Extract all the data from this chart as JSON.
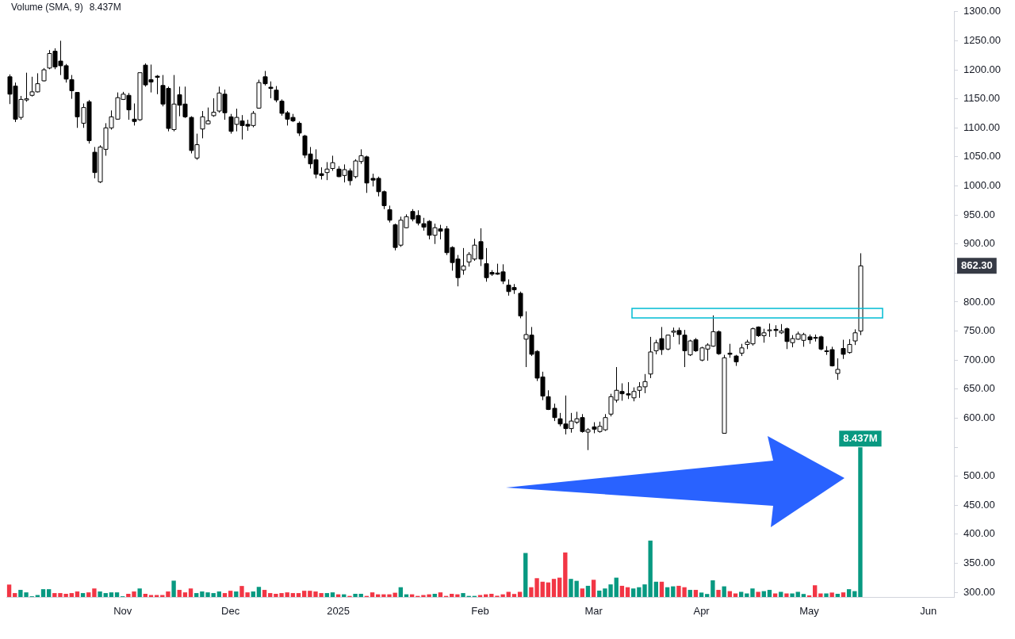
{
  "chart_data": {
    "type": "candlestick",
    "categories": [
      null,
      null,
      null,
      null,
      null,
      null,
      null,
      null,
      null,
      null,
      null,
      null,
      null,
      null,
      null,
      null,
      null,
      null,
      null,
      null,
      "Nov",
      null,
      null,
      null,
      null,
      null,
      null,
      null,
      null,
      null,
      null,
      null,
      null,
      null,
      null,
      null,
      null,
      null,
      null,
      "Dec",
      null,
      null,
      null,
      null,
      null,
      null,
      null,
      null,
      null,
      null,
      null,
      null,
      null,
      null,
      null,
      null,
      null,
      null,
      "2025",
      null,
      null,
      null,
      null,
      null,
      null,
      null,
      null,
      null,
      null,
      null,
      null,
      null,
      null,
      null,
      null,
      null,
      null,
      null,
      null,
      null,
      null,
      null,
      null,
      "Feb",
      null,
      null,
      null,
      null,
      null,
      null,
      null,
      null,
      null,
      null,
      null,
      null,
      null,
      null,
      null,
      null,
      null,
      null,
      null,
      "Mar",
      null,
      null,
      null,
      null,
      null,
      null,
      null,
      null,
      null,
      null,
      null,
      null,
      null,
      null,
      null,
      null,
      null,
      null,
      "Apr",
      null,
      null,
      null,
      null,
      null,
      null,
      null,
      null,
      null,
      null,
      null,
      null,
      null,
      null,
      null,
      null,
      null,
      null,
      "May",
      null,
      null,
      null,
      null,
      null,
      null,
      null,
      null,
      null,
      null,
      null,
      null,
      null,
      null,
      null,
      null,
      null,
      null,
      null,
      null,
      "Jun",
      null,
      null,
      null,
      null
    ],
    "ohlc": [
      [
        1188,
        1192,
        1141,
        1158
      ],
      [
        1172,
        1178,
        1110,
        1115
      ],
      [
        1118,
        1155,
        1114,
        1149
      ],
      [
        1148,
        1195,
        1145,
        1150
      ],
      [
        1156,
        1188,
        1154,
        1162
      ],
      [
        1162,
        1194,
        1161,
        1176
      ],
      [
        1181,
        1203,
        1180,
        1200
      ],
      [
        1203,
        1234,
        1201,
        1228
      ],
      [
        1232,
        1237,
        1201,
        1205
      ],
      [
        1215,
        1250,
        1191,
        1207
      ],
      [
        1207,
        1210,
        1178,
        1184
      ],
      [
        1183,
        1191,
        1150,
        1164
      ],
      [
        1161,
        1161,
        1100,
        1119
      ],
      [
        1108,
        1142,
        1100,
        1135
      ],
      [
        1145,
        1148,
        1073,
        1078
      ],
      [
        1058,
        1067,
        1013,
        1023
      ],
      [
        1007,
        1070,
        1005,
        1067
      ],
      [
        1063,
        1108,
        1052,
        1100
      ],
      [
        1100,
        1130,
        1097,
        1119
      ],
      [
        1115,
        1161,
        1114,
        1152
      ],
      [
        1149,
        1162,
        1148,
        1158
      ],
      [
        1156,
        1160,
        1114,
        1131
      ],
      [
        1115,
        1142,
        1104,
        1111
      ],
      [
        1114,
        1195,
        1112,
        1195
      ],
      [
        1208,
        1211,
        1171,
        1174
      ],
      [
        1183,
        1209,
        1161,
        1179
      ],
      [
        1189,
        1191,
        1158,
        1187
      ],
      [
        1173,
        1191,
        1137,
        1141
      ],
      [
        1168,
        1171,
        1094,
        1099
      ],
      [
        1097,
        1191,
        1094,
        1141
      ],
      [
        1157,
        1171,
        1120,
        1139
      ],
      [
        1141,
        1171,
        1117,
        1119
      ],
      [
        1118,
        1120,
        1056,
        1061
      ],
      [
        1048,
        1090,
        1045,
        1071
      ],
      [
        1098,
        1129,
        1082,
        1119
      ],
      [
        1107,
        1135,
        1106,
        1112
      ],
      [
        1121,
        1151,
        1119,
        1127
      ],
      [
        1129,
        1171,
        1126,
        1160
      ],
      [
        1158,
        1166,
        1114,
        1126
      ],
      [
        1119,
        1124,
        1090,
        1094
      ],
      [
        1106,
        1133,
        1094,
        1118
      ],
      [
        1112,
        1122,
        1080,
        1104
      ],
      [
        1106,
        1114,
        1095,
        1103
      ],
      [
        1104,
        1129,
        1101,
        1125
      ],
      [
        1134,
        1183,
        1133,
        1178
      ],
      [
        1188,
        1198,
        1173,
        1176
      ],
      [
        1170,
        1180,
        1151,
        1168
      ],
      [
        1165,
        1172,
        1144,
        1148
      ],
      [
        1146,
        1149,
        1121,
        1125
      ],
      [
        1126,
        1129,
        1104,
        1115
      ],
      [
        1118,
        1124,
        1110,
        1112
      ],
      [
        1108,
        1111,
        1086,
        1091
      ],
      [
        1086,
        1088,
        1048,
        1053
      ],
      [
        1055,
        1067,
        1030,
        1038
      ],
      [
        1045,
        1063,
        1013,
        1020
      ],
      [
        1021,
        1032,
        1011,
        1018
      ],
      [
        1023,
        1041,
        1010,
        1029
      ],
      [
        1030,
        1052,
        1026,
        1040
      ],
      [
        1029,
        1034,
        1015,
        1016
      ],
      [
        1018,
        1037,
        1006,
        1028
      ],
      [
        1026,
        1030,
        1001,
        1009
      ],
      [
        1016,
        1046,
        1013,
        1043
      ],
      [
        1042,
        1063,
        1038,
        1052
      ],
      [
        1050,
        1052,
        988,
        1005
      ],
      [
        1013,
        1021,
        999,
        1010
      ],
      [
        1013,
        1016,
        982,
        990
      ],
      [
        990,
        992,
        960,
        966
      ],
      [
        959,
        966,
        937,
        941
      ],
      [
        933,
        935,
        889,
        894
      ],
      [
        898,
        947,
        895,
        941
      ],
      [
        928,
        951,
        927,
        947
      ],
      [
        956,
        960,
        939,
        943
      ],
      [
        949,
        958,
        932,
        936
      ],
      [
        935,
        945,
        923,
        929
      ],
      [
        939,
        941,
        908,
        915
      ],
      [
        915,
        935,
        900,
        928
      ],
      [
        926,
        933,
        908,
        922
      ],
      [
        926,
        931,
        881,
        885
      ],
      [
        894,
        896,
        854,
        868
      ],
      [
        874,
        881,
        827,
        842
      ],
      [
        855,
        893,
        847,
        862
      ],
      [
        869,
        886,
        861,
        882
      ],
      [
        874,
        909,
        871,
        898
      ],
      [
        904,
        927,
        862,
        874
      ],
      [
        866,
        893,
        835,
        842
      ],
      [
        851,
        855,
        845,
        848
      ],
      [
        850,
        866,
        847,
        848
      ],
      [
        852,
        865,
        831,
        836
      ],
      [
        829,
        839,
        811,
        818
      ],
      [
        825,
        831,
        814,
        821
      ],
      [
        815,
        818,
        772,
        776
      ],
      [
        736,
        784,
        688,
        744
      ],
      [
        743,
        757,
        707,
        710
      ],
      [
        715,
        717,
        664,
        669
      ],
      [
        671,
        680,
        631,
        638
      ],
      [
        637,
        648,
        614,
        615
      ],
      [
        617,
        625,
        595,
        601
      ],
      [
        599,
        609,
        586,
        590
      ],
      [
        590,
        639,
        572,
        582
      ],
      [
        582,
        609,
        575,
        595
      ],
      [
        593,
        611,
        590,
        599
      ],
      [
        601,
        607,
        575,
        577
      ],
      [
        576,
        583,
        545,
        580
      ],
      [
        585,
        593,
        574,
        581
      ],
      [
        577,
        594,
        575,
        586
      ],
      [
        580,
        607,
        578,
        601
      ],
      [
        607,
        642,
        603,
        637
      ],
      [
        631,
        688,
        627,
        648
      ],
      [
        646,
        660,
        630,
        642
      ],
      [
        642,
        662,
        633,
        640
      ],
      [
        635,
        653,
        629,
        646
      ],
      [
        648,
        662,
        635,
        654
      ],
      [
        654,
        676,
        643,
        663
      ],
      [
        676,
        740,
        669,
        714
      ],
      [
        716,
        735,
        710,
        730
      ],
      [
        737,
        757,
        709,
        718
      ],
      [
        719,
        744,
        717,
        743
      ],
      [
        748,
        756,
        740,
        750
      ],
      [
        751,
        756,
        727,
        744
      ],
      [
        743,
        752,
        688,
        716
      ],
      [
        709,
        735,
        707,
        733
      ],
      [
        735,
        738,
        714,
        716
      ],
      [
        700,
        723,
        698,
        721
      ],
      [
        719,
        729,
        699,
        726
      ],
      [
        724,
        777,
        723,
        749
      ],
      [
        749,
        751,
        709,
        711
      ],
      [
        574,
        709,
        574,
        704
      ],
      [
        712,
        728,
        704,
        710
      ],
      [
        707,
        709,
        690,
        697
      ],
      [
        712,
        728,
        707,
        721
      ],
      [
        727,
        735,
        719,
        731
      ],
      [
        728,
        756,
        725,
        754
      ],
      [
        757,
        758,
        740,
        742
      ],
      [
        742,
        754,
        730,
        747
      ],
      [
        752,
        763,
        740,
        752
      ],
      [
        753,
        760,
        740,
        751
      ],
      [
        747,
        762,
        745,
        750
      ],
      [
        754,
        756,
        719,
        732
      ],
      [
        730,
        743,
        722,
        737
      ],
      [
        736,
        749,
        735,
        745
      ],
      [
        734,
        747,
        723,
        744
      ],
      [
        740,
        744,
        728,
        735
      ],
      [
        739,
        744,
        732,
        738
      ],
      [
        740,
        742,
        717,
        719
      ],
      [
        716,
        724,
        709,
        716
      ],
      [
        718,
        723,
        689,
        690
      ],
      [
        677,
        703,
        666,
        684
      ],
      [
        720,
        735,
        702,
        710
      ],
      [
        713,
        736,
        711,
        727
      ],
      [
        733,
        753,
        726,
        747
      ],
      [
        750,
        884,
        743,
        862.3
      ],
      null,
      null,
      null,
      null,
      null,
      null,
      null,
      null,
      null,
      null,
      null,
      null,
      null,
      null,
      null,
      null
    ],
    "series": [
      {
        "type": "bar",
        "axis": "y2",
        "values": [
          0.7,
          0.22,
          0.4,
          0.26,
          0.04,
          0.11,
          0.44,
          0.44,
          0.22,
          0.22,
          0.18,
          0.22,
          0.31,
          0.22,
          0.26,
          0.48,
          0.31,
          0.22,
          0.26,
          0.26,
          0.04,
          0.18,
          0.31,
          0.48,
          0.18,
          0.11,
          0.11,
          0.11,
          0.31,
          0.92,
          0.4,
          0.26,
          0.48,
          0.22,
          0.31,
          0.26,
          0.22,
          0.31,
          0.22,
          0.35,
          0.31,
          0.62,
          0.26,
          0.31,
          0.57,
          0.4,
          0.22,
          0.18,
          0.22,
          0.26,
          0.22,
          0.22,
          0.35,
          0.35,
          0.31,
          0.22,
          0.22,
          0.26,
          0.15,
          0.15,
          0.06,
          0.18,
          0.18,
          0.06,
          0.26,
          0.15,
          0.15,
          0.15,
          0.24,
          0.55,
          0.15,
          0.15,
          0.06,
          0.11,
          0.15,
          0.18,
          0.26,
          0.06,
          0.18,
          0.15,
          0.22,
          0.06,
          0.06,
          0.11,
          0.15,
          0.18,
          0.07,
          0.15,
          0.29,
          0.17,
          0.29,
          2.48,
          0.55,
          1.06,
          0.86,
          0.82,
          1.02,
          1.09,
          2.51,
          1.02,
          0.91,
          0.48,
          0.63,
          0.97,
          0.36,
          0.48,
          0.71,
          1.09,
          0.63,
          0.55,
          0.48,
          0.55,
          0.71,
          3.18,
          0.86,
          0.86,
          0.55,
          0.6,
          0.63,
          0.55,
          0.4,
          0.4,
          0.25,
          0.17,
          0.94,
          0.4,
          0.6,
          0.33,
          0.2,
          0.29,
          0.2,
          0.48,
          0.29,
          0.33,
          0.4,
          0.2,
          0.29,
          0.2,
          0.2,
          0.29,
          0.17,
          0.09,
          0.66,
          0.2,
          0.2,
          0.25,
          0.18,
          0.26,
          0.44,
          0.33,
          8.437,
          null,
          null,
          null,
          null,
          null,
          null,
          null,
          null,
          null,
          null,
          null,
          null,
          null,
          null,
          null,
          null
        ],
        "colors": [
          "#f23645",
          "#f23645",
          "#089981",
          "#089981",
          "#089981",
          "#089981",
          "#089981",
          "#089981",
          "#f23645",
          "#f23645",
          "#f23645",
          "#f23645",
          "#f23645",
          "#089981",
          "#f23645",
          "#f23645",
          "#089981",
          "#089981",
          "#089981",
          "#089981",
          "#089981",
          "#f23645",
          "#f23645",
          "#089981",
          "#f23645",
          "#f23645",
          "#f23645",
          "#f23645",
          "#f23645",
          "#089981",
          "#f23645",
          "#f23645",
          "#f23645",
          "#089981",
          "#089981",
          "#089981",
          "#089981",
          "#089981",
          "#f23645",
          "#f23645",
          "#089981",
          "#f23645",
          "#f23645",
          "#089981",
          "#089981",
          "#f23645",
          "#f23645",
          "#f23645",
          "#f23645",
          "#f23645",
          "#f23645",
          "#f23645",
          "#f23645",
          "#f23645",
          "#f23645",
          "#f23645",
          "#089981",
          "#089981",
          "#f23645",
          "#089981",
          "#f23645",
          "#089981",
          "#089981",
          "#f23645",
          "#f23645",
          "#f23645",
          "#f23645",
          "#f23645",
          "#f23645",
          "#089981",
          "#089981",
          "#f23645",
          "#f23645",
          "#f23645",
          "#f23645",
          "#089981",
          "#f23645",
          "#f23645",
          "#f23645",
          "#f23645",
          "#089981",
          "#089981",
          "#089981",
          "#f23645",
          "#f23645",
          "#f23645",
          "#f23645",
          "#f23645",
          "#f23645",
          "#f23645",
          "#f23645",
          "#089981",
          "#f23645",
          "#f23645",
          "#f23645",
          "#f23645",
          "#f23645",
          "#f23645",
          "#f23645",
          "#089981",
          "#089981",
          "#f23645",
          "#089981",
          "#f23645",
          "#089981",
          "#089981",
          "#089981",
          "#089981",
          "#f23645",
          "#f23645",
          "#089981",
          "#089981",
          "#089981",
          "#089981",
          "#089981",
          "#f23645",
          "#089981",
          "#089981",
          "#f23645",
          "#f23645",
          "#089981",
          "#f23645",
          "#089981",
          "#089981",
          "#089981",
          "#f23645",
          "#089981",
          "#f23645",
          "#f23645",
          "#089981",
          "#089981",
          "#089981",
          "#f23645",
          "#089981",
          "#089981",
          "#f23645",
          "#089981",
          "#f23645",
          "#089981",
          "#089981",
          "#089981",
          "#f23645",
          "#f23645",
          "#f23645",
          "#089981",
          "#f23645",
          "#089981",
          "#f23645",
          "#089981",
          "#089981",
          "#089981",
          null,
          null,
          null,
          null,
          null,
          null,
          null,
          null,
          null,
          null,
          null,
          null,
          null,
          null,
          null,
          null
        ],
        "value_labels": [
          null,
          null,
          null,
          null,
          null,
          null,
          null,
          null,
          null,
          null,
          null,
          null,
          null,
          null,
          null,
          null,
          null,
          null,
          null,
          null,
          null,
          null,
          null,
          null,
          null,
          null,
          null,
          null,
          null,
          null,
          null,
          null,
          null,
          null,
          null,
          null,
          null,
          null,
          null,
          null,
          null,
          null,
          null,
          null,
          null,
          null,
          null,
          null,
          null,
          null,
          null,
          null,
          null,
          null,
          null,
          null,
          null,
          null,
          null,
          null,
          null,
          null,
          null,
          null,
          null,
          null,
          null,
          null,
          null,
          null,
          null,
          null,
          null,
          null,
          null,
          null,
          null,
          null,
          null,
          null,
          null,
          null,
          null,
          null,
          null,
          null,
          null,
          null,
          null,
          null,
          null,
          null,
          null,
          null,
          null,
          null,
          null,
          null,
          null,
          null,
          null,
          null,
          null,
          null,
          null,
          null,
          null,
          null,
          null,
          null,
          null,
          null,
          null,
          null,
          null,
          null,
          null,
          null,
          null,
          null,
          null,
          null,
          null,
          null,
          null,
          null,
          null,
          null,
          null,
          null,
          null,
          null,
          null,
          null,
          null,
          null,
          null,
          null,
          null,
          null,
          null,
          null,
          null,
          null,
          null,
          null,
          null,
          null,
          null,
          null,
          "8.437M",
          null,
          null,
          null,
          null,
          null,
          null,
          null,
          null,
          null,
          null,
          null,
          null,
          null,
          null,
          null,
          null
        ]
      }
    ],
    "ylim": [
      292,
      1300
    ],
    "y2lim": [
      0,
      33
    ],
    "yticks": [
      {
        "value": 300,
        "label": "300.00"
      },
      {
        "value": 350,
        "label": "350.00"
      },
      {
        "value": 400,
        "label": "400.00"
      },
      {
        "value": 450,
        "label": "450.00"
      },
      {
        "value": 500,
        "label": "500.00"
      },
      {
        "value": 550,
        "label": null
      },
      {
        "value": 600,
        "label": "600.00"
      },
      {
        "value": 650,
        "label": "650.00"
      },
      {
        "value": 700,
        "label": "700.00"
      },
      {
        "value": 750,
        "label": "750.00"
      },
      {
        "value": 800,
        "label": "800.00"
      },
      {
        "value": 850,
        "label": null
      },
      {
        "value": 900,
        "label": "900.00"
      },
      {
        "value": 950,
        "label": "950.00"
      },
      {
        "value": 1000,
        "label": "1000.00"
      },
      {
        "value": 1050,
        "label": "1050.00"
      },
      {
        "value": 1100,
        "label": "1100.00"
      },
      {
        "value": 1150,
        "label": "1150.00"
      },
      {
        "value": 1200,
        "label": "1200.00"
      },
      {
        "value": 1250,
        "label": "1250.00"
      },
      {
        "value": 1300,
        "label": "1300.00"
      }
    ],
    "annotations": [
      "Volume (SMA, 9)",
      "8.437M",
      "862.30"
    ]
  }
}
